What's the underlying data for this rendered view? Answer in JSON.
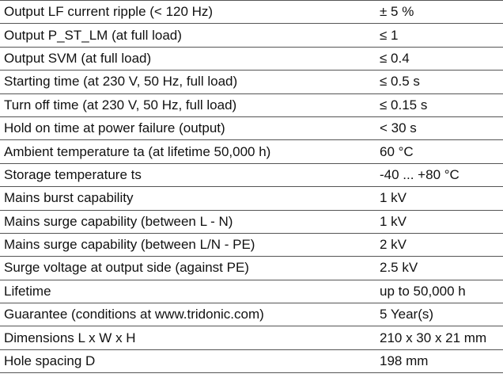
{
  "specs": [
    {
      "label": "Output LF current ripple (< 120 Hz)",
      "value": "± 5 %"
    },
    {
      "label": "Output P_ST_LM (at full load)",
      "value": "≤ 1"
    },
    {
      "label": "Output SVM (at full load)",
      "value": "≤ 0.4"
    },
    {
      "label": "Starting time (at 230 V, 50 Hz, full load)",
      "value": "≤ 0.5 s"
    },
    {
      "label": "Turn off time (at 230 V, 50 Hz, full load)",
      "value": "≤ 0.15 s"
    },
    {
      "label": "Hold on time at power failure (output)",
      "value": "< 30 s"
    },
    {
      "label": "Ambient temperature ta (at lifetime 50,000 h)",
      "value": "60 °C"
    },
    {
      "label": "Storage temperature ts",
      "value": "-40 ... +80 °C"
    },
    {
      "label": "Mains burst capability",
      "value": "1 kV"
    },
    {
      "label": "Mains surge capability (between L - N)",
      "value": "1 kV"
    },
    {
      "label": "Mains surge capability (between L/N - PE)",
      "value": "2 kV"
    },
    {
      "label": "Surge voltage at output side (against PE)",
      "value": "2.5 kV"
    },
    {
      "label": "Lifetime",
      "value": "up to 50,000 h"
    },
    {
      "label": "Guarantee (conditions at www.tridonic.com)",
      "value": "5 Year(s)"
    },
    {
      "label": "Dimensions L x W x H",
      "value": "210 x 30 x 21 mm"
    },
    {
      "label": "Hole spacing D",
      "value": "198 mm"
    }
  ]
}
